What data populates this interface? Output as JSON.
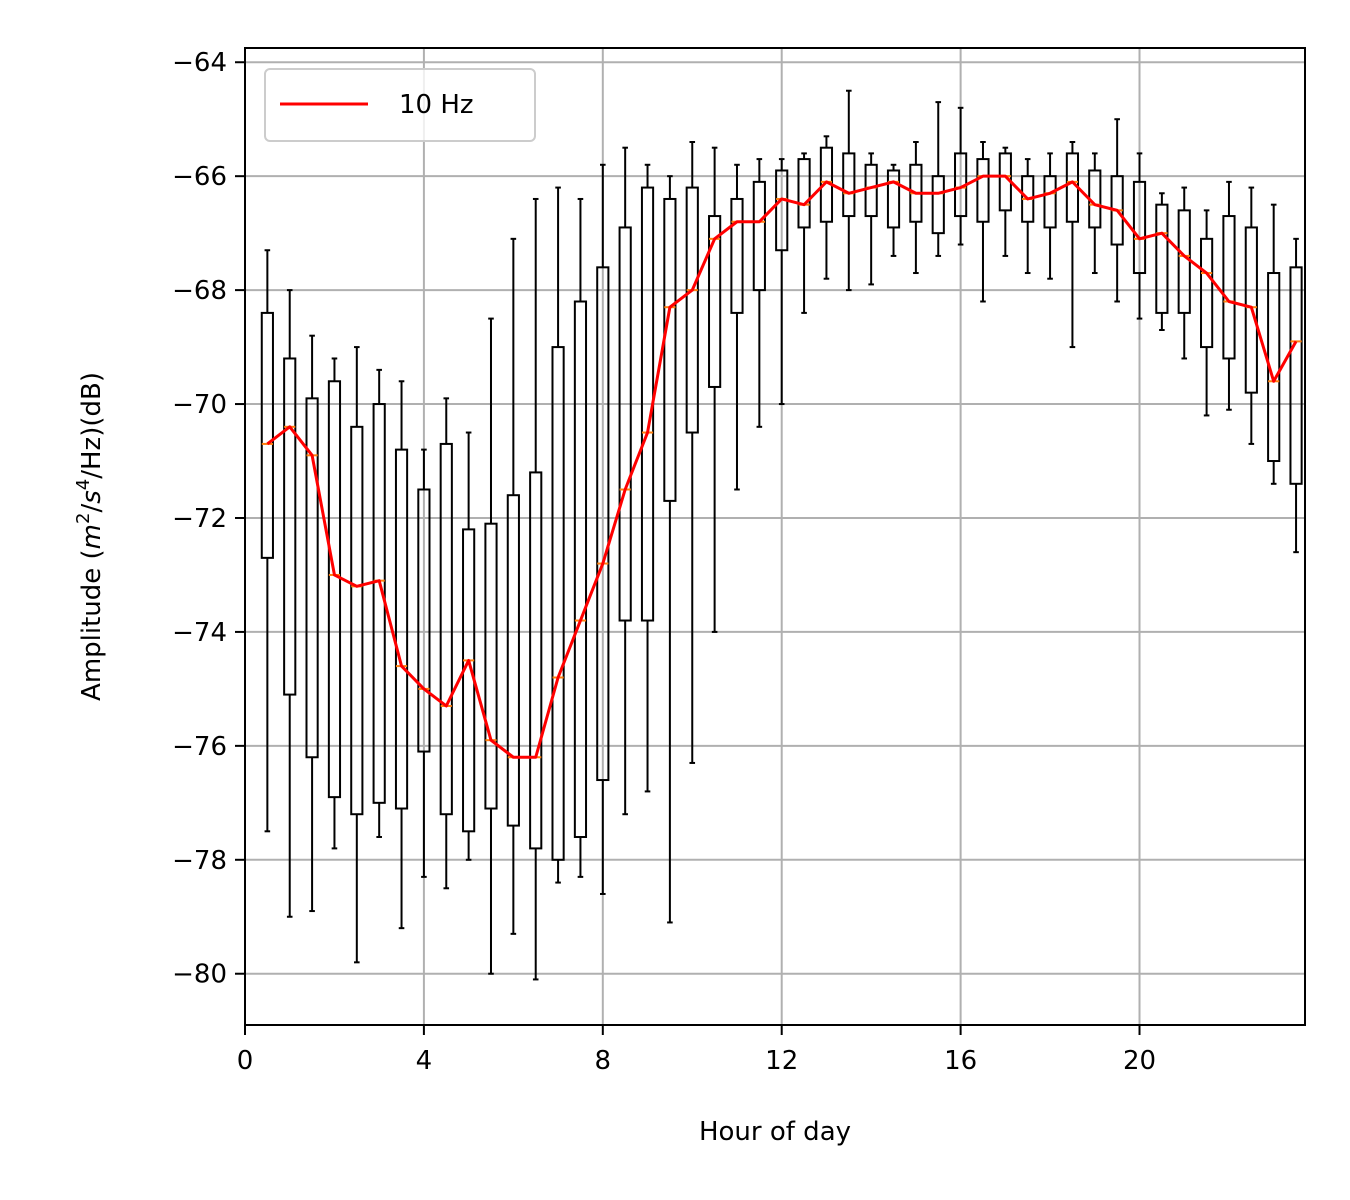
{
  "chart_data": {
    "type": "box",
    "xlabel": "Hour of day",
    "ylabel_parts": {
      "prefix": "Amplitude (",
      "m": "m",
      "m_exp": "2",
      "slash1": "/",
      "s": "s",
      "s_exp": "4",
      "suffix": "/Hz)(dB)"
    },
    "xlim": [
      0,
      23.7
    ],
    "ylim": [
      -80.9,
      -63.75
    ],
    "x_ticks": [
      0,
      4,
      8,
      12,
      16,
      20
    ],
    "y_ticks": [
      -80,
      -78,
      -76,
      -74,
      -72,
      -70,
      -68,
      -66,
      -64
    ],
    "x_tick_labels": [
      "0",
      "4",
      "8",
      "12",
      "16",
      "20"
    ],
    "y_tick_labels": [
      "−80",
      "−78",
      "−76",
      "−74",
      "−72",
      "−70",
      "−68",
      "−66",
      "−64"
    ],
    "grid": true,
    "legend": {
      "position": "top-left",
      "entries": [
        {
          "label": "10 Hz",
          "color": "#ff0000"
        }
      ]
    },
    "colors": {
      "median_line": "#ff0000",
      "median_tick": "#ff7f0e",
      "box": "#000000",
      "grid": "#b0b0b0"
    },
    "series": [
      {
        "name": "10 Hz",
        "hours": [
          0.5,
          1.0,
          1.5,
          2.0,
          2.5,
          3.0,
          3.5,
          4.0,
          4.5,
          5.0,
          5.5,
          6.0,
          6.5,
          7.0,
          7.5,
          8.0,
          8.5,
          9.0,
          9.5,
          10.0,
          10.5,
          11.0,
          11.5,
          12.0,
          12.5,
          13.0,
          13.5,
          14.0,
          14.5,
          15.0,
          15.5,
          16.0,
          16.5,
          17.0,
          17.5,
          18.0,
          18.5,
          19.0,
          19.5,
          20.0,
          20.5,
          21.0,
          21.5,
          22.0,
          22.5,
          23.0,
          23.5
        ],
        "median": [
          -70.7,
          -70.4,
          -70.9,
          -73.0,
          -73.2,
          -73.1,
          -74.6,
          -75.0,
          -75.3,
          -74.5,
          -75.9,
          -76.2,
          -76.2,
          -74.8,
          -73.8,
          -72.8,
          -71.5,
          -70.5,
          -68.3,
          -68.0,
          -67.1,
          -66.8,
          -66.8,
          -66.4,
          -66.5,
          -66.1,
          -66.3,
          -66.2,
          -66.1,
          -66.3,
          -66.3,
          -66.2,
          -66.0,
          -66.0,
          -66.4,
          -66.3,
          -66.1,
          -66.5,
          -66.6,
          -67.1,
          -67.0,
          -67.4,
          -67.7,
          -68.2,
          -68.3,
          -69.6,
          -68.9
        ],
        "q1": [
          -72.7,
          -75.1,
          -76.2,
          -76.9,
          -77.2,
          -77.0,
          -77.1,
          -76.1,
          -77.2,
          -77.5,
          -77.1,
          -77.4,
          -77.8,
          -78.0,
          -77.6,
          -76.6,
          -73.8,
          -73.8,
          -71.7,
          -70.5,
          -69.7,
          -68.4,
          -68.0,
          -67.3,
          -66.9,
          -66.8,
          -66.7,
          -66.7,
          -66.9,
          -66.8,
          -67.0,
          -66.7,
          -66.8,
          -66.6,
          -66.8,
          -66.9,
          -66.8,
          -66.9,
          -67.2,
          -67.7,
          -68.4,
          -68.4,
          -69.0,
          -69.2,
          -69.8,
          -71.0,
          -71.4
        ],
        "q3": [
          -68.4,
          -69.2,
          -69.9,
          -69.6,
          -70.4,
          -70.0,
          -70.8,
          -71.5,
          -70.7,
          -72.2,
          -72.1,
          -71.6,
          -71.2,
          -69.0,
          -68.2,
          -67.6,
          -66.9,
          -66.2,
          -66.4,
          -66.2,
          -66.7,
          -66.4,
          -66.1,
          -65.9,
          -65.7,
          -65.5,
          -65.6,
          -65.8,
          -65.9,
          -65.8,
          -66.0,
          -65.6,
          -65.7,
          -65.6,
          -66.0,
          -66.0,
          -65.6,
          -65.9,
          -66.0,
          -66.1,
          -66.5,
          -66.6,
          -67.1,
          -66.7,
          -66.9,
          -67.7,
          -67.6
        ],
        "whisker_low": [
          -77.5,
          -79.0,
          -78.9,
          -77.8,
          -79.8,
          -77.6,
          -79.2,
          -78.3,
          -78.5,
          -78.0,
          -80.0,
          -79.3,
          -80.1,
          -78.4,
          -78.3,
          -78.6,
          -77.2,
          -76.8,
          -79.1,
          -76.3,
          -74.0,
          -71.5,
          -70.4,
          -70.0,
          -68.4,
          -67.8,
          -68.0,
          -67.9,
          -67.4,
          -67.7,
          -67.4,
          -67.2,
          -68.2,
          -67.4,
          -67.7,
          -67.8,
          -69.0,
          -67.7,
          -68.2,
          -68.5,
          -68.7,
          -69.2,
          -70.2,
          -70.1,
          -70.7,
          -71.4,
          -72.6
        ],
        "whisker_high": [
          -67.3,
          -68.0,
          -68.8,
          -69.2,
          -69.0,
          -69.4,
          -69.6,
          -70.8,
          -69.9,
          -70.5,
          -68.5,
          -67.1,
          -66.4,
          -66.2,
          -66.4,
          -65.8,
          -65.5,
          -65.8,
          -66.0,
          -65.4,
          -65.5,
          -65.8,
          -65.7,
          -65.7,
          -65.6,
          -65.3,
          -64.5,
          -65.6,
          -65.8,
          -65.4,
          -64.7,
          -64.8,
          -65.4,
          -65.5,
          -65.7,
          -65.6,
          -65.4,
          -65.6,
          -65.0,
          -65.6,
          -66.3,
          -66.2,
          -66.6,
          -66.1,
          -66.2,
          -66.5,
          -67.1
        ]
      }
    ]
  }
}
